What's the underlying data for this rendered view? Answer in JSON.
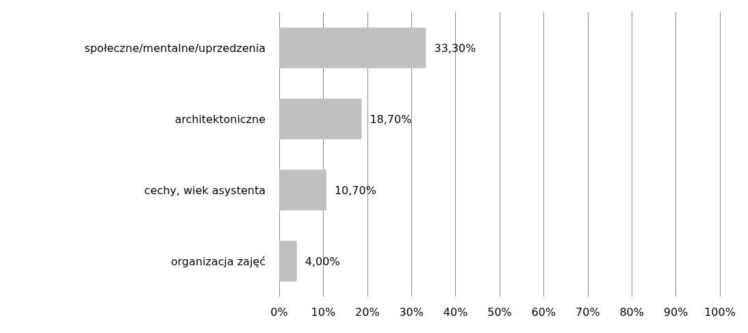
{
  "chart_data": {
    "type": "bar",
    "orientation": "horizontal",
    "categories": [
      "społeczne/mentalne/uprzedzenia",
      "architektoniczne",
      "cechy, wiek asystenta",
      "organizacja zajęć"
    ],
    "values": [
      33.3,
      18.7,
      10.7,
      4.0
    ],
    "value_labels": [
      "33,30%",
      "18,70%",
      "10,70%",
      "4,00%"
    ],
    "color": "#c0c0c0",
    "xlim": [
      0,
      100
    ],
    "xticks": [
      {
        "value": 0,
        "label": "0%"
      },
      {
        "value": 10,
        "label": "10%"
      },
      {
        "value": 20,
        "label": "20%"
      },
      {
        "value": 30,
        "label": "30%"
      },
      {
        "value": 40,
        "label": "40%"
      },
      {
        "value": 50,
        "label": "50%"
      },
      {
        "value": 60,
        "label": "60%"
      },
      {
        "value": 70,
        "label": "70%"
      },
      {
        "value": 80,
        "label": "80%"
      },
      {
        "value": 90,
        "label": "90%"
      },
      {
        "value": 100,
        "label": "100%"
      }
    ],
    "grid": "x"
  }
}
